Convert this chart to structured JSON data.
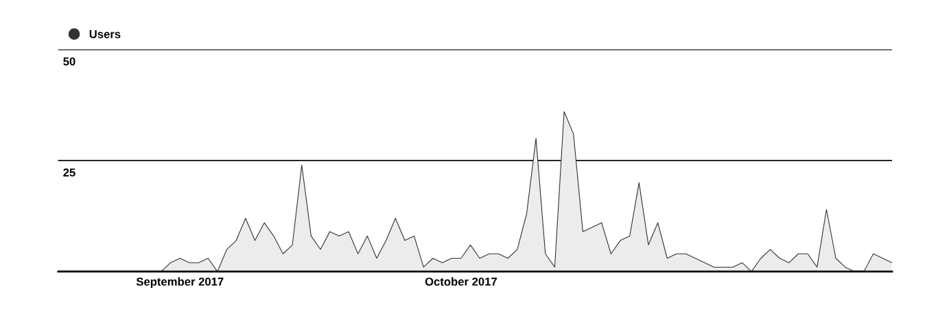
{
  "chart_data": {
    "type": "area",
    "x": [
      "2017-08-19",
      "2017-08-20",
      "2017-08-21",
      "2017-08-22",
      "2017-08-23",
      "2017-08-24",
      "2017-08-25",
      "2017-08-26",
      "2017-08-27",
      "2017-08-28",
      "2017-08-29",
      "2017-08-30",
      "2017-08-31",
      "2017-09-01",
      "2017-09-02",
      "2017-09-03",
      "2017-09-04",
      "2017-09-05",
      "2017-09-06",
      "2017-09-07",
      "2017-09-08",
      "2017-09-09",
      "2017-09-10",
      "2017-09-11",
      "2017-09-12",
      "2017-09-13",
      "2017-09-14",
      "2017-09-15",
      "2017-09-16",
      "2017-09-17",
      "2017-09-18",
      "2017-09-19",
      "2017-09-20",
      "2017-09-21",
      "2017-09-22",
      "2017-09-23",
      "2017-09-24",
      "2017-09-25",
      "2017-09-26",
      "2017-09-27",
      "2017-09-28",
      "2017-09-29",
      "2017-09-30",
      "2017-10-01",
      "2017-10-02",
      "2017-10-03",
      "2017-10-04",
      "2017-10-05",
      "2017-10-06",
      "2017-10-07",
      "2017-10-08",
      "2017-10-09",
      "2017-10-10",
      "2017-10-11",
      "2017-10-12",
      "2017-10-13",
      "2017-10-14",
      "2017-10-15",
      "2017-10-16",
      "2017-10-17",
      "2017-10-18",
      "2017-10-19",
      "2017-10-20",
      "2017-10-21",
      "2017-10-22",
      "2017-10-23",
      "2017-10-24",
      "2017-10-25",
      "2017-10-26",
      "2017-10-27",
      "2017-10-28",
      "2017-10-29",
      "2017-10-30",
      "2017-10-31",
      "2017-11-01",
      "2017-11-02",
      "2017-11-03",
      "2017-11-04",
      "2017-11-05",
      "2017-11-06",
      "2017-11-07",
      "2017-11-08",
      "2017-11-09",
      "2017-11-10",
      "2017-11-11",
      "2017-11-12",
      "2017-11-13",
      "2017-11-14",
      "2017-11-15",
      "2017-11-16"
    ],
    "series": [
      {
        "name": "Users",
        "color": "#333333",
        "values": [
          0,
          0,
          0,
          0,
          0,
          0,
          0,
          0,
          0,
          0,
          0,
          0,
          2,
          3,
          2,
          2,
          3,
          0,
          5,
          7,
          12,
          7,
          11,
          8,
          4,
          6,
          24,
          8,
          5,
          9,
          8,
          9,
          4,
          8,
          3,
          7,
          12,
          7,
          8,
          1,
          3,
          2,
          3,
          3,
          6,
          3,
          4,
          4,
          3,
          5,
          13,
          30,
          4,
          1,
          36,
          31,
          9,
          10,
          11,
          4,
          7,
          8,
          20,
          6,
          11,
          3,
          4,
          4,
          3,
          2,
          1,
          1,
          1,
          2,
          0,
          3,
          5,
          3,
          2,
          4,
          4,
          1,
          14,
          3,
          1,
          0,
          0,
          4,
          3,
          2
        ]
      }
    ],
    "xlim": [
      "2017-08-19",
      "2017-11-16"
    ],
    "xticks": [
      {
        "value": "2017-09-01",
        "label": "September 2017"
      },
      {
        "value": "2017-10-01",
        "label": "October 2017"
      }
    ],
    "ylim": [
      0,
      50
    ],
    "yticks": [
      {
        "value": 0,
        "label": null
      },
      25,
      50
    ],
    "grid": "y",
    "legend": "top left",
    "marker": "none",
    "line_style": "solid"
  }
}
